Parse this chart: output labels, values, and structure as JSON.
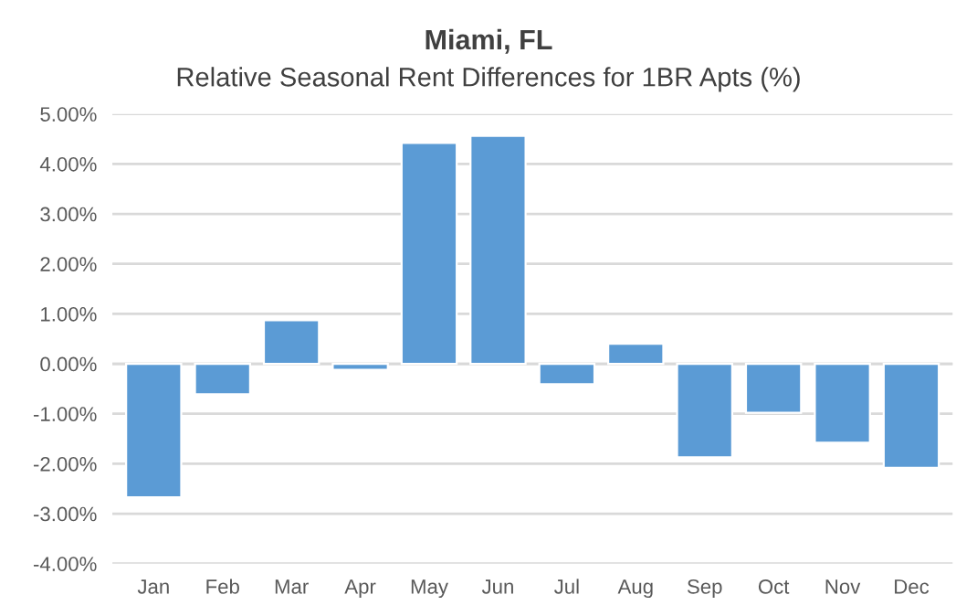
{
  "chart_data": {
    "type": "bar",
    "title": "Miami, FL",
    "subtitle": "Relative Seasonal Rent Differences for 1BR Apts (%)",
    "categories": [
      "Jan",
      "Feb",
      "Mar",
      "Apr",
      "May",
      "Jun",
      "Jul",
      "Aug",
      "Sep",
      "Oct",
      "Nov",
      "Dec"
    ],
    "values": [
      -2.67,
      -0.61,
      0.87,
      -0.12,
      4.42,
      4.56,
      -0.41,
      0.4,
      -1.87,
      -0.98,
      -1.58,
      -2.08
    ],
    "color": "#5b9bd5",
    "ylim": [
      -4,
      5
    ],
    "yticks": [
      {
        "value": -4,
        "label": "-4.00%"
      },
      {
        "value": -3,
        "label": "-3.00%"
      },
      {
        "value": -2,
        "label": "-2.00%"
      },
      {
        "value": -1,
        "label": "-1.00%"
      },
      {
        "value": 0,
        "label": "0.00%"
      },
      {
        "value": 1,
        "label": "1.00%"
      },
      {
        "value": 2,
        "label": "2.00%"
      },
      {
        "value": 3,
        "label": "3.00%"
      },
      {
        "value": 4,
        "label": "4.00%"
      },
      {
        "value": 5,
        "label": "5.00%"
      }
    ],
    "grid": "y"
  }
}
